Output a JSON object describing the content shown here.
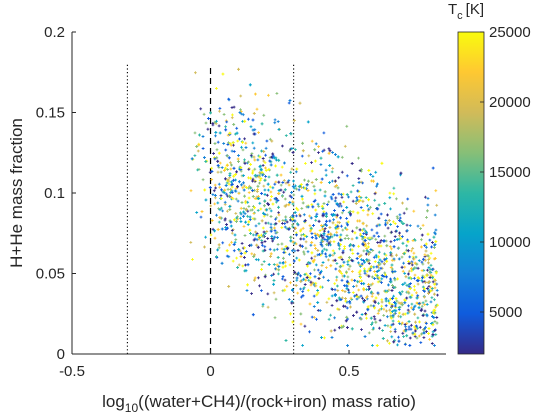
{
  "chart_data": {
    "type": "scatter",
    "title": "",
    "xlabel_prefix": "log",
    "xlabel_sub": "10",
    "xlabel_rest": "((water+CH4)/(rock+iron) mass ratio)",
    "ylabel": "H+He mass fraction",
    "xlim": [
      -0.5,
      0.85
    ],
    "ylim": [
      0,
      0.2
    ],
    "xticks": [
      -0.5,
      0,
      0.5
    ],
    "xtick_labels": [
      "-0.5",
      "0",
      "0.5"
    ],
    "yticks": [
      0,
      0.05,
      0.1,
      0.15,
      0.2
    ],
    "ytick_labels": [
      "0",
      "0.05",
      "0.1",
      "0.15",
      "0.2"
    ],
    "grid": false,
    "marker": "+",
    "point_count": 2600,
    "point_cloud": {
      "x_range": [
        -0.08,
        0.82
      ],
      "y_range": [
        0.005,
        0.18
      ],
      "trend": "H+He mass fraction decreases as log10 mass ratio increases"
    },
    "reference_lines": [
      {
        "x": -0.3,
        "style": "dotted",
        "y_top": 0.18
      },
      {
        "x": 0.0,
        "style": "dashed",
        "y_top": 0.18
      },
      {
        "x": 0.3,
        "style": "dotted",
        "y_top": 0.18
      }
    ],
    "colorbar": {
      "label_main": "T",
      "label_sub": "c",
      "label_unit": "[K]",
      "range": [
        2000,
        25000
      ],
      "ticks": [
        5000,
        10000,
        15000,
        20000,
        25000
      ],
      "tick_labels": [
        "5000",
        "10000",
        "15000",
        "20000",
        "25000"
      ],
      "colormap": "parula",
      "colors": [
        "#352a87",
        "#0f5cdd",
        "#1481d6",
        "#06a4ca",
        "#2eb7a4",
        "#87bf77",
        "#d1bb59",
        "#fec832",
        "#f9fb0e"
      ]
    }
  }
}
